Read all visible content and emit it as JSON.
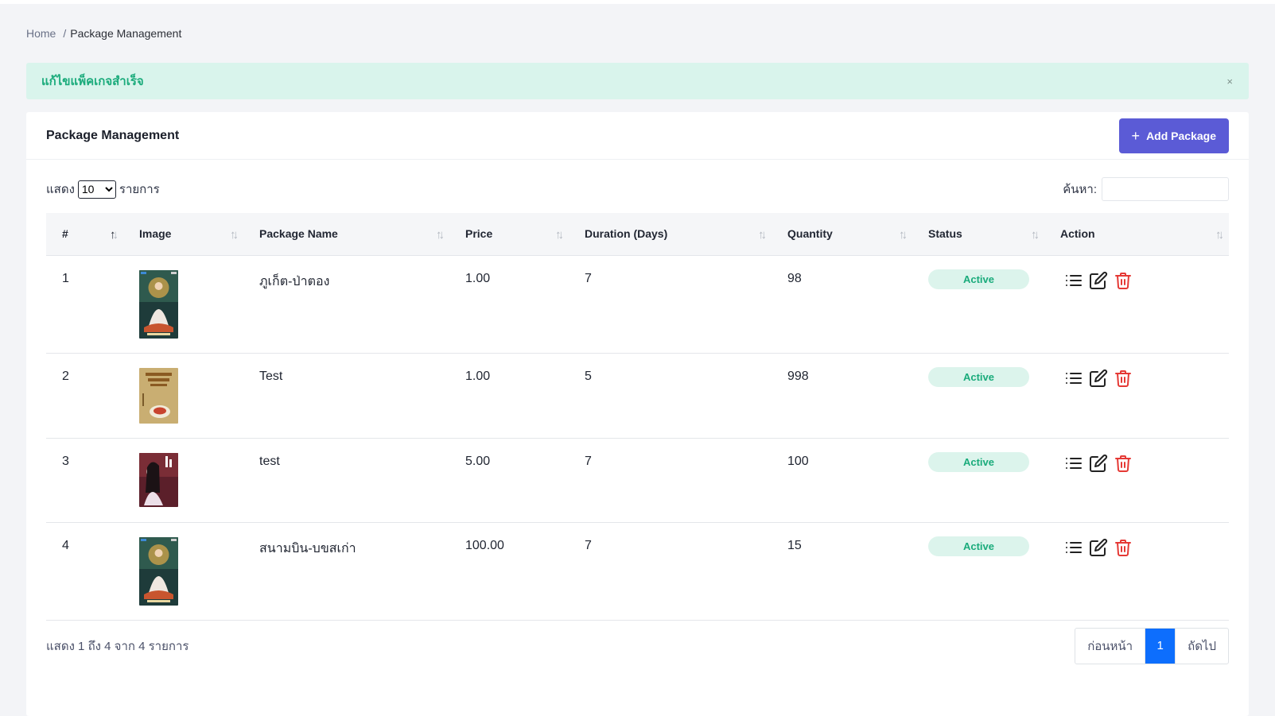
{
  "breadcrumb": {
    "home": "Home",
    "separator": "/",
    "current": "Package Management"
  },
  "alert": {
    "message": "แก้ไขแพ็คเกจสำเร็จ",
    "close": "×"
  },
  "card": {
    "title": "Package Management",
    "add_button": "Add Package",
    "add_icon": "+"
  },
  "controls": {
    "show_label": "แสดง",
    "page_size": "10",
    "page_size_options": [
      "10"
    ],
    "entries_label": "รายการ",
    "search_label": "ค้นหา:",
    "search_value": ""
  },
  "table": {
    "columns": [
      "#",
      "Image",
      "Package Name",
      "Price",
      "Duration (Days)",
      "Quantity",
      "Status",
      "Action"
    ],
    "rows": [
      {
        "no": "1",
        "image": "poster-goddess",
        "name": "ภูเก็ต-ป่าตอง",
        "price": "1.00",
        "duration": "7",
        "quantity": "98",
        "status": "Active"
      },
      {
        "no": "2",
        "image": "poster-food",
        "name": "Test",
        "price": "1.00",
        "duration": "5",
        "quantity": "998",
        "status": "Active"
      },
      {
        "no": "3",
        "image": "poster-portrait",
        "name": "test",
        "price": "5.00",
        "duration": "7",
        "quantity": "100",
        "status": "Active"
      },
      {
        "no": "4",
        "image": "poster-goddess",
        "name": "สนามบิน-บขสเก่า",
        "price": "100.00",
        "duration": "7",
        "quantity": "15",
        "status": "Active"
      }
    ]
  },
  "footer": {
    "info": "แสดง 1 ถึง 4 จาก 4 รายการ",
    "prev": "ก่อนหน้า",
    "page": "1",
    "next": "ถัดไป"
  },
  "colors": {
    "accent": "#5b5bd6",
    "success": "#1aab7b",
    "success_bg": "#d9f4ec",
    "danger": "#e53935",
    "page_active": "#0d6efd"
  },
  "icons": {
    "list": "list-icon",
    "edit": "edit-icon",
    "delete": "trash-icon",
    "sort": "sort-icon"
  }
}
